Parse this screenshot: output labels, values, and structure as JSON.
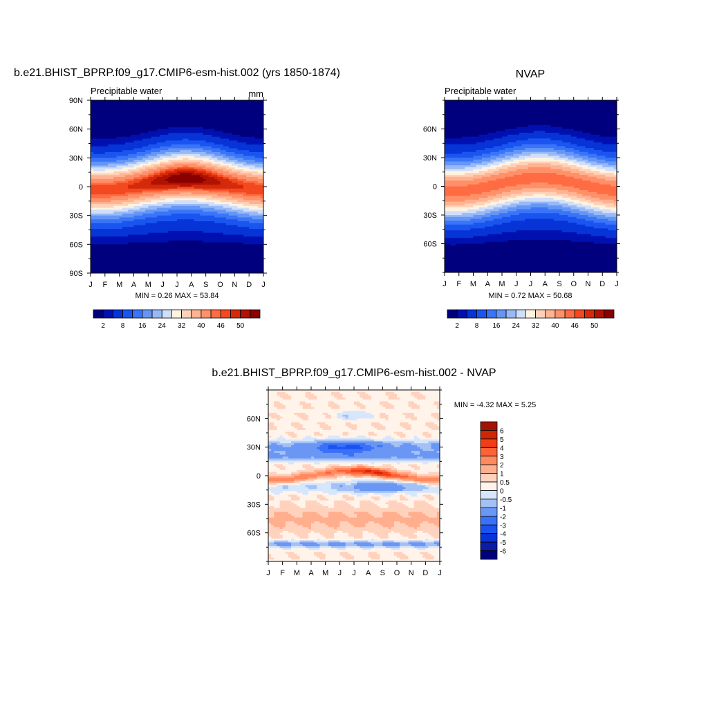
{
  "palettes": {
    "full": [
      "#00007f",
      "#0011b0",
      "#0734d6",
      "#1b55f0",
      "#3a74f8",
      "#6496f6",
      "#98b9f6",
      "#cfdffb",
      "#fff3e0",
      "#ffd2b8",
      "#ffb392",
      "#ff9169",
      "#ff6c44",
      "#f34820",
      "#d42a0a",
      "#b01303",
      "#880000"
    ],
    "diff": [
      "#00007f",
      "#0a1ca8",
      "#0634d8",
      "#1a52f0",
      "#3b70f8",
      "#6a97f4",
      "#a4c1f6",
      "#d6e6fc",
      "#fff3ea",
      "#ffd2be",
      "#ffae8e",
      "#ff8a60",
      "#ff6236",
      "#f23e14",
      "#cf2606",
      "#a21204"
    ]
  },
  "charts": [
    {
      "title": "b.e21.BHIST_BPRP.f09_g17.CMIP6-esm-hist.002 (yrs 1850-1874)",
      "left_label": "Precipitable water",
      "right_label": "mm",
      "stats": "MIN =   0.26 MAX =  53.84"
    },
    {
      "title": "NVAP",
      "left_label": "Precipitable water",
      "right_label": "",
      "stats": "MIN =   0.72 MAX =  50.68"
    },
    {
      "title": "b.e21.BHIST_BPRP.f09_g17.CMIP6-esm-hist.002 - NVAP",
      "left_label": "",
      "right_label": "",
      "stats": "MIN =  -4.32 MAX =   5.25"
    }
  ],
  "colorbar_full_labels": [
    "2",
    "8",
    "16",
    "24",
    "32",
    "40",
    "46",
    "50"
  ],
  "colorbar_diff_labels": [
    "6",
    "5",
    "4",
    "3",
    "2",
    "1",
    "0.5",
    "0",
    "-0.5",
    "-1",
    "-2",
    "-3",
    "-4",
    "-5",
    "-6"
  ],
  "chart_data": [
    {
      "type": "heatmap",
      "title": "b.e21.BHIST_BPRP.f09_g17.CMIP6-esm-hist.002 (yrs 1850-1874)",
      "subtitle": "Precipitable water",
      "units": "mm",
      "x_ticks": [
        "J",
        "F",
        "M",
        "A",
        "M",
        "J",
        "J",
        "A",
        "S",
        "O",
        "N",
        "D",
        "J"
      ],
      "y_ticks": [
        "90N",
        "60N",
        "30N",
        "0",
        "30S",
        "60S",
        "90S"
      ],
      "y_tick_values": [
        90,
        60,
        30,
        0,
        -30,
        -60,
        -90
      ],
      "ylim": [
        -90,
        90
      ],
      "min": 0.26,
      "max": 53.84,
      "contour_levels": [
        2,
        4,
        8,
        12,
        16,
        20,
        24,
        28,
        32,
        36,
        40,
        44,
        46,
        48,
        50,
        52
      ]
    },
    {
      "type": "heatmap",
      "title": "NVAP",
      "subtitle": "Precipitable water",
      "x_ticks": [
        "J",
        "F",
        "M",
        "A",
        "M",
        "J",
        "J",
        "A",
        "S",
        "O",
        "N",
        "D",
        "J"
      ],
      "y_ticks": [
        "60N",
        "30N",
        "0",
        "30S",
        "60S"
      ],
      "y_tick_values": [
        60,
        30,
        0,
        -30,
        -60
      ],
      "min": 0.72,
      "max": 50.68,
      "contour_levels": [
        2,
        4,
        8,
        12,
        16,
        20,
        24,
        28,
        32,
        36,
        40,
        44,
        46,
        48,
        50,
        52
      ]
    },
    {
      "type": "heatmap",
      "title": "b.e21.BHIST_BPRP.f09_g17.CMIP6-esm-hist.002 - NVAP",
      "x_ticks": [
        "J",
        "F",
        "M",
        "A",
        "M",
        "J",
        "J",
        "A",
        "S",
        "O",
        "N",
        "D",
        "J"
      ],
      "y_ticks": [
        "60N",
        "30N",
        "0",
        "30S",
        "60S"
      ],
      "y_tick_values": [
        60,
        30,
        0,
        -30,
        -60
      ],
      "min": -4.32,
      "max": 5.25,
      "contour_levels": [
        -6,
        -5,
        -4,
        -3,
        -2,
        -1,
        -0.5,
        0,
        0.5,
        1,
        2,
        3,
        4,
        5,
        6
      ]
    }
  ]
}
